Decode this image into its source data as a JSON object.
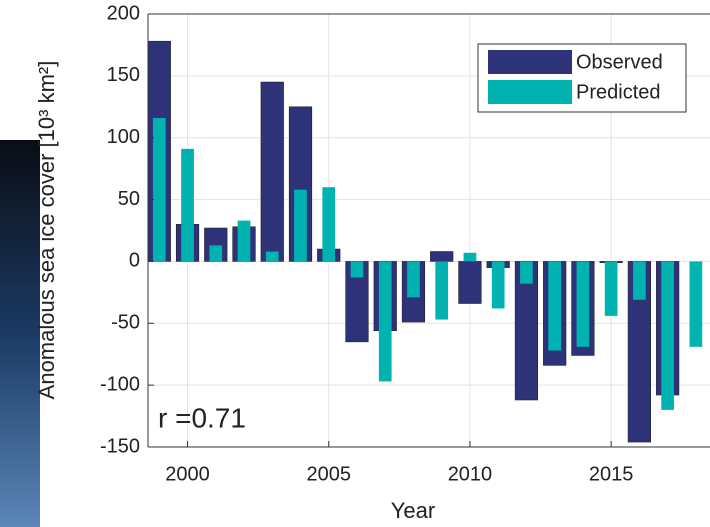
{
  "chart_data": {
    "type": "bar",
    "xlabel": "Year",
    "ylabel": "Anomalous sea ice cover [10³ km²]",
    "annotation": "r =0.71",
    "x": [
      1999,
      2000,
      2001,
      2002,
      2003,
      2004,
      2005,
      2006,
      2007,
      2008,
      2009,
      2010,
      2011,
      2012,
      2013,
      2014,
      2015,
      2016,
      2017,
      2018
    ],
    "series": [
      {
        "name": "Observed",
        "color": "#2e3278",
        "values": [
          178,
          30,
          27,
          28,
          145,
          125,
          10,
          -65,
          -56,
          -49,
          8,
          -34,
          -5,
          -112,
          -84,
          -76,
          -1,
          -146,
          -108,
          null
        ]
      },
      {
        "name": "Predicted",
        "color": "#00b3b0",
        "values": [
          116,
          91,
          13,
          33,
          8,
          58,
          60,
          -13,
          -97,
          -29,
          -47,
          7,
          -38,
          -18,
          -72,
          -69,
          -44,
          -31,
          -120,
          -69
        ]
      }
    ],
    "xlim": [
      1998.6,
      2018.5
    ],
    "xticks": [
      2000,
      2005,
      2010,
      2015
    ],
    "ylim": [
      -150,
      200
    ],
    "yticks": [
      -150,
      -100,
      -50,
      0,
      50,
      100,
      150,
      200
    ],
    "grid": true,
    "legend": "top-right"
  }
}
